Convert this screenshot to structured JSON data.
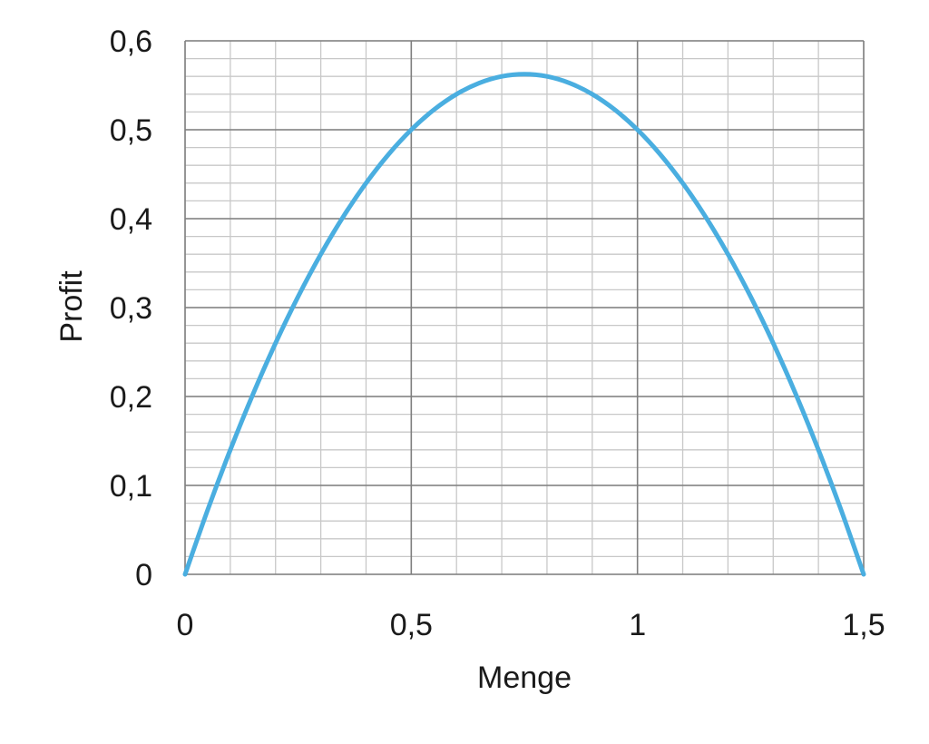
{
  "chart_data": {
    "type": "line",
    "title": "",
    "xlabel": "Menge",
    "ylabel": "Profit",
    "xlim": [
      0,
      1.5
    ],
    "ylim": [
      0,
      0.6
    ],
    "x_ticks": [
      0,
      0.5,
      1,
      1.5
    ],
    "x_tick_labels": [
      "0",
      "0,5",
      "1",
      "1,5"
    ],
    "y_ticks": [
      0,
      0.1,
      0.2,
      0.3,
      0.4,
      0.5,
      0.6
    ],
    "y_tick_labels": [
      "0",
      "0,1",
      "0,2",
      "0,3",
      "0,4",
      "0,5",
      "0,6"
    ],
    "grid": true,
    "legend": "none",
    "series": [
      {
        "color": "#4aaee0",
        "x": [
          0,
          0.05,
          0.1,
          0.15,
          0.2,
          0.25,
          0.3,
          0.35,
          0.4,
          0.45,
          0.5,
          0.55,
          0.6,
          0.65,
          0.7,
          0.75,
          0.8,
          0.85,
          0.9,
          0.95,
          1.0,
          1.05,
          1.1,
          1.15,
          1.2,
          1.25,
          1.3,
          1.35,
          1.4,
          1.45,
          1.5
        ],
        "y": [
          0,
          0.0725,
          0.14,
          0.2025,
          0.26,
          0.3125,
          0.36,
          0.4025,
          0.44,
          0.4725,
          0.5,
          0.5225,
          0.54,
          0.5525,
          0.56,
          0.5625,
          0.56,
          0.5525,
          0.54,
          0.5225,
          0.5,
          0.4725,
          0.44,
          0.4025,
          0.36,
          0.3125,
          0.26,
          0.2025,
          0.14,
          0.0725,
          0
        ]
      }
    ]
  }
}
